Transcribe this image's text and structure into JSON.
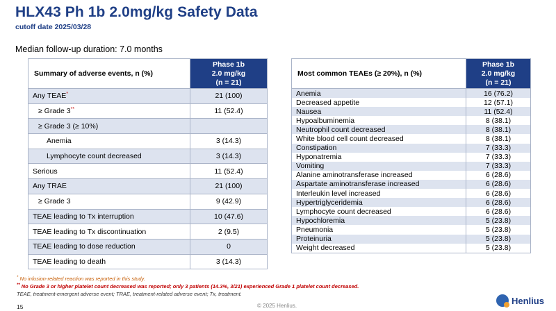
{
  "header": {
    "title": "HLX43 Ph 1b 2.0mg/kg Safety Data",
    "subtitle": "cutoff date 2025/03/28"
  },
  "follow_up": "Median follow-up duration: 7.0 months",
  "summary_table": {
    "header_label": "Summary of adverse events, n (%)",
    "col_line1": "Phase 1b",
    "col_line2": "2.0 mg/kg",
    "col_line3": "(n = 21)",
    "rows": [
      {
        "label": "Any TEAE",
        "mark": "*",
        "value": "21 (100)",
        "indent": 0
      },
      {
        "label": "≥ Grade 3",
        "mark": "**",
        "value": "11 (52.4)",
        "indent": 1
      },
      {
        "label": "≥ Grade 3 (≥ 10%)",
        "mark": "",
        "value": "",
        "indent": 1
      },
      {
        "label": "Anemia",
        "mark": "",
        "value": "3 (14.3)",
        "indent": 2
      },
      {
        "label": "Lymphocyte count decreased",
        "mark": "",
        "value": "3 (14.3)",
        "indent": 2
      },
      {
        "label": "Serious",
        "mark": "",
        "value": "11 (52.4)",
        "indent": 0
      },
      {
        "label": "Any TRAE",
        "mark": "",
        "value": "21 (100)",
        "indent": 0
      },
      {
        "label": "≥ Grade 3",
        "mark": "",
        "value": "9 (42.9)",
        "indent": 1
      },
      {
        "label": "TEAE leading to Tx interruption",
        "mark": "",
        "value": "10 (47.6)",
        "indent": 0
      },
      {
        "label": "TEAE leading to Tx discontinuation",
        "mark": "",
        "value": "2 (9.5)",
        "indent": 0
      },
      {
        "label": "TEAE leading to dose reduction",
        "mark": "",
        "value": "0",
        "indent": 0
      },
      {
        "label": "TEAE leading to death",
        "mark": "",
        "value": "3 (14.3)",
        "indent": 0
      }
    ]
  },
  "teae_table": {
    "header_label": "Most common TEAEs (≥ 20%), n (%)",
    "col_line1": "Phase 1b",
    "col_line2": "2.0 mg/kg",
    "col_line3": "(n = 21)",
    "rows": [
      {
        "label": "Anemia",
        "value": "16 (76.2)"
      },
      {
        "label": "Decreased appetite",
        "value": "12 (57.1)"
      },
      {
        "label": "Nausea",
        "value": "11 (52.4)"
      },
      {
        "label": "Hypoalbuminemia",
        "value": "8 (38.1)"
      },
      {
        "label": "Neutrophil count decreased",
        "value": "8 (38.1)"
      },
      {
        "label": "White blood cell count decreased",
        "value": "8 (38.1)"
      },
      {
        "label": "Constipation",
        "value": "7 (33.3)"
      },
      {
        "label": "Hyponatremia",
        "value": "7 (33.3)"
      },
      {
        "label": "Vomiting",
        "value": "7 (33.3)"
      },
      {
        "label": "Alanine aminotransferase increased",
        "value": "6 (28.6)"
      },
      {
        "label": "Aspartate aminotransferase increased",
        "value": "6 (28.6)"
      },
      {
        "label": "Interleukin level increased",
        "value": "6 (28.6)"
      },
      {
        "label": "Hypertriglyceridemia",
        "value": "6 (28.6)"
      },
      {
        "label": "Lymphocyte count decreased",
        "value": "6 (28.6)"
      },
      {
        "label": "Hypochloremia",
        "value": "5 (23.8)"
      },
      {
        "label": "Pneumonia",
        "value": "5 (23.8)"
      },
      {
        "label": "Proteinuria",
        "value": "5 (23.8)"
      },
      {
        "label": "Weight decreased",
        "value": "5 (23.8)"
      }
    ]
  },
  "footnotes": {
    "fn1_mark": "*",
    "fn1": "No infusion-related reaction was reported in this study.",
    "fn2_mark": "**",
    "fn2": "No Grade 3 or higher platelet count decreased was reported; only 3 patients (14.3%, 3/21) experienced Grade 1 platelet count decreased.",
    "fn3": "TEAE, treatment-emergent adverse event; TRAE, treatment-related adverse event; Tx, treatment."
  },
  "page_number": "15",
  "copyright": "© 2025 Henlius.",
  "logo_text": "Henlius",
  "colors": {
    "brand": "#1f3f86",
    "row_shade": "#dde3ef",
    "footnote_orange": "#c55a00",
    "footnote_red": "#c00000"
  }
}
